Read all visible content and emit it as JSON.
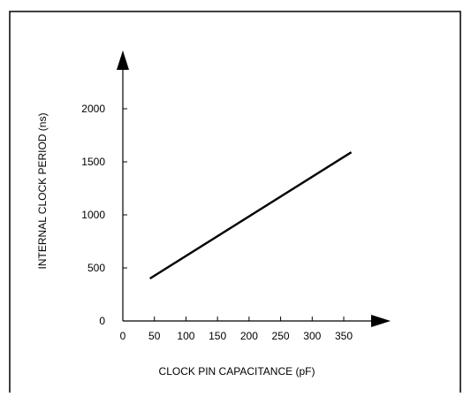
{
  "chart_data": {
    "type": "line",
    "title": "",
    "xlabel": "CLOCK PIN CAPACITANCE (pF)",
    "ylabel": "INTERNAL CLOCK PERIOD (ns)",
    "x_ticks": [
      0,
      50,
      100,
      150,
      200,
      250,
      300,
      350
    ],
    "y_ticks": [
      0,
      500,
      1000,
      1500,
      2000
    ],
    "xlim": [
      0,
      350
    ],
    "ylim": [
      0,
      2000
    ],
    "grid": false,
    "series": [
      {
        "x": [
          43,
          362
        ],
        "y": [
          400,
          1590
        ]
      }
    ]
  },
  "colors": {
    "line": "#000000",
    "frame": "#000000",
    "background": "#ffffff"
  }
}
